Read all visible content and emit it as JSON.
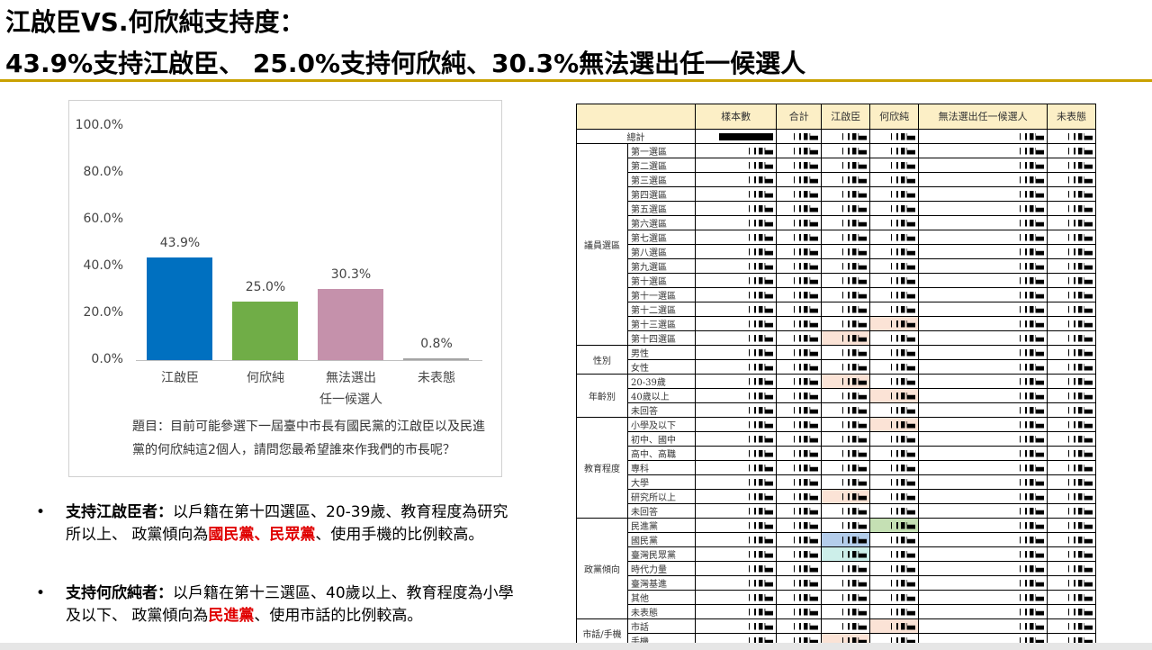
{
  "title": {
    "line1": "江啟臣VS.何欣純支持度：",
    "line2": "43.9%支持江啟臣、 25.0%支持何欣純、30.3%無法選出任一候選人"
  },
  "chart_data": {
    "type": "bar",
    "categories": [
      "江啟臣",
      "何欣純",
      "無法選出任一候選人",
      "未表態"
    ],
    "category_lines": [
      [
        "江啟臣"
      ],
      [
        "何欣純"
      ],
      [
        "無法選出",
        "任一候選人"
      ],
      [
        "未表態"
      ]
    ],
    "values": [
      43.9,
      25.0,
      30.3,
      0.8
    ],
    "value_labels": [
      "43.9%",
      "25.0%",
      "30.3%",
      "0.8%"
    ],
    "colors": [
      "#0070C0",
      "#70AD47",
      "#C591AB",
      "#A5A5A5"
    ],
    "yticks": [
      "100.0%",
      "80.0%",
      "60.0%",
      "40.0%",
      "20.0%",
      "0.0%"
    ],
    "ylim": [
      0,
      100
    ],
    "grid": false
  },
  "question": "題目：目前可能參選下一屆臺中市長有國民黨的江啟臣以及民進黨的何欣純這2個人，請問您最希望誰來作我們的市長呢？",
  "bullets": [
    {
      "head": "支持江啟臣者：",
      "parts": [
        "以戶籍在第十四選區、20-39歲、教育程度為研究所以上、 政黨傾向為",
        "國民黨、民眾黨",
        "、使用手機的比例較高。"
      ]
    },
    {
      "head": "支持何欣純者：",
      "parts": [
        "以戶籍在第十三選區、40歲以上、教育程度為小學及以下、 政黨傾向為",
        "民進黨",
        "、使用市話的比例較高。"
      ]
    }
  ],
  "table": {
    "headers": [
      "樣本數",
      "合計",
      "江啟臣",
      "何欣純",
      "無法選出任一候選人",
      "未表態"
    ],
    "total_label": "總計",
    "groups": [
      {
        "name": "議員選區",
        "rows": [
          "第一選區",
          "第二選區",
          "第三選區",
          "第四選區",
          "第五選區",
          "第六選區",
          "第七選區",
          "第八選區",
          "第九選區",
          "第十選區",
          "第十一選區",
          "第十二選區",
          "第十三選區",
          "第十四選區"
        ]
      },
      {
        "name": "性別",
        "rows": [
          "男性",
          "女性"
        ]
      },
      {
        "name": "年齡別",
        "rows": [
          "20-39歲",
          "40歲以上",
          "未回答"
        ]
      },
      {
        "name": "教育程度",
        "rows": [
          "小學及以下",
          "初中、國中",
          "高中、高職",
          "專科",
          "大學",
          "研究所以上",
          "未回答"
        ]
      },
      {
        "name": "政黨傾向",
        "rows": [
          "民進黨",
          "國民黨",
          "臺灣民眾黨",
          "時代力量",
          "臺灣基進",
          "其他",
          "未表態"
        ]
      },
      {
        "name": "市話/手機",
        "rows": [
          "市話",
          "手機"
        ]
      }
    ],
    "highlights": {
      "第十三選區": [
        3,
        "pink"
      ],
      "第十四選區": [
        2,
        "pink"
      ],
      "20-39歲": [
        2,
        "pink"
      ],
      "40歲以上": [
        3,
        "pink"
      ],
      "小學及以下": [
        3,
        "pink"
      ],
      "研究所以上": [
        2,
        "pink"
      ],
      "民進黨": [
        3,
        "green"
      ],
      "國民黨": [
        2,
        "blue"
      ],
      "臺灣民眾黨": [
        2,
        "teal"
      ],
      "市話": [
        3,
        "pink"
      ],
      "手機": [
        2,
        "pink"
      ]
    }
  }
}
